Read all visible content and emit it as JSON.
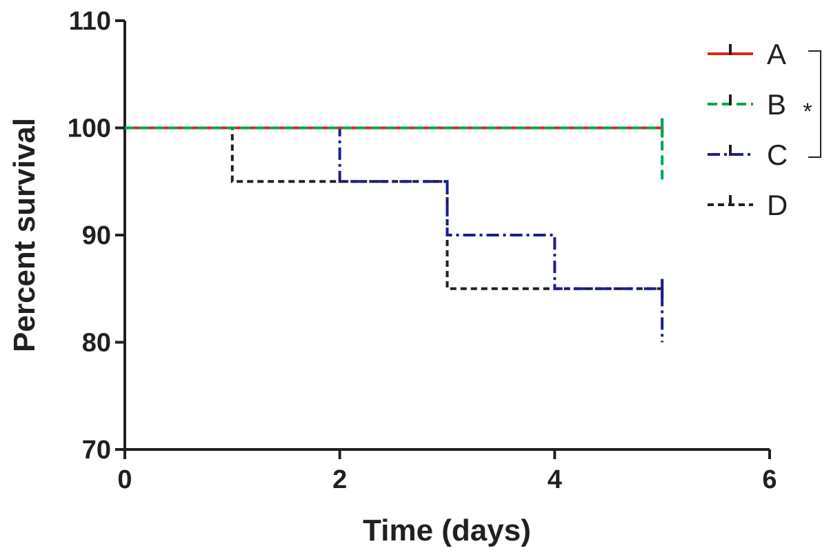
{
  "chart_data": {
    "type": "line",
    "subtype": "kaplan-meier step",
    "title": "",
    "xlabel": "Time (days)",
    "ylabel": "Percent survival",
    "xlim": [
      0,
      6
    ],
    "ylim": [
      70,
      110
    ],
    "xticks": [
      "0",
      "2",
      "4",
      "6"
    ],
    "yticks": [
      "70",
      "80",
      "90",
      "100",
      "110"
    ],
    "grid": false,
    "legend_position": "top-right",
    "series": [
      {
        "name": "A",
        "color": "#e2231a",
        "dash": "solid",
        "x": [
          0,
          5
        ],
        "y": [
          100,
          100
        ],
        "end_drop": 100
      },
      {
        "name": "B",
        "color": "#00a651",
        "dash": "dashed",
        "x": [
          0,
          5
        ],
        "y": [
          100,
          100
        ],
        "end_drop": 95
      },
      {
        "name": "C",
        "color": "#1b1f8f",
        "dash": "dash-dot",
        "x": [
          0,
          2,
          3,
          4,
          5
        ],
        "y": [
          100,
          95,
          90,
          85,
          85
        ],
        "end_drop": 80
      },
      {
        "name": "D",
        "color": "#231f20",
        "dash": "dotted",
        "x": [
          0,
          1,
          3,
          5
        ],
        "y": [
          100,
          95,
          85,
          85
        ],
        "end_drop": 85
      }
    ],
    "annotations": [
      {
        "text": "*",
        "bracket_series": [
          "A",
          "C"
        ]
      }
    ]
  }
}
